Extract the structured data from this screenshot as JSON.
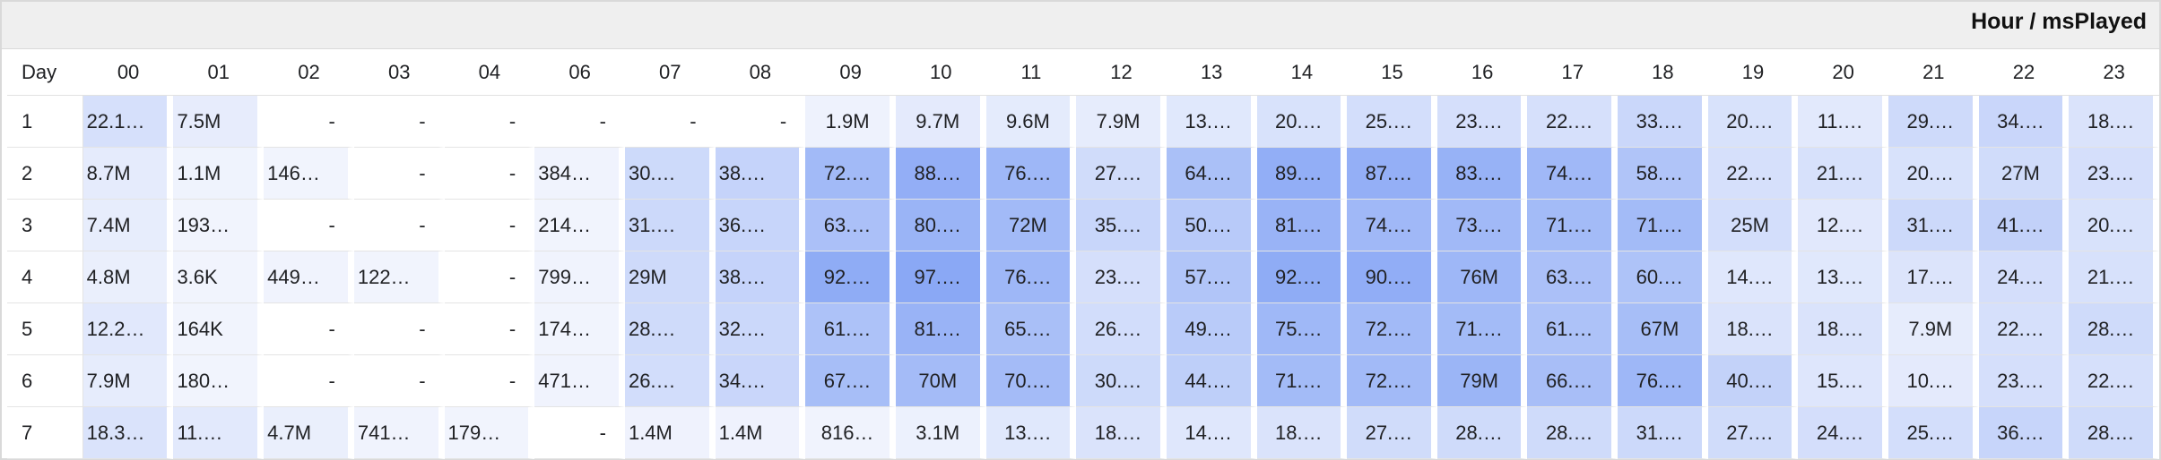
{
  "panel": {
    "title": "Hour / msPlayed"
  },
  "colors": {
    "cell_low": "#f1f4fd",
    "cell_high": "#8aa8f5",
    "empty": "#ffffff"
  },
  "chart_data": {
    "type": "heatmap",
    "row_header": "Day",
    "columns": [
      "00",
      "01",
      "02",
      "03",
      "04",
      "06",
      "07",
      "08",
      "09",
      "10",
      "11",
      "12",
      "13",
      "14",
      "15",
      "16",
      "17",
      "18",
      "19",
      "20",
      "21",
      "22",
      "23"
    ],
    "rows": [
      {
        "day": "1",
        "labels": [
          "22.1…",
          "7.5M",
          "-",
          "-",
          "-",
          "-",
          "-",
          "-",
          "1.9M",
          "9.7M",
          "9.6M",
          "7.9M",
          "13.…",
          "20.…",
          "25.…",
          "23.…",
          "22.…",
          "33.…",
          "20.…",
          "11.…",
          "29.…",
          "34.…",
          "18.…"
        ],
        "values": [
          22100000,
          7500000,
          0,
          0,
          0,
          0,
          0,
          0,
          1900000,
          9700000,
          9600000,
          7900000,
          13000000,
          20000000,
          25000000,
          23000000,
          22000000,
          33000000,
          20000000,
          11000000,
          29000000,
          34000000,
          18000000
        ]
      },
      {
        "day": "2",
        "labels": [
          "8.7M",
          "1.1M",
          "146…",
          "-",
          "-",
          "384…",
          "30.…",
          "38.…",
          "72.…",
          "88.…",
          "76.…",
          "27.…",
          "64.…",
          "89.…",
          "87.…",
          "83.…",
          "74.…",
          "58.…",
          "22.…",
          "21.…",
          "20.…",
          "27M",
          "23.…"
        ],
        "values": [
          8700000,
          1100000,
          146000,
          0,
          0,
          384000,
          30000000,
          38000000,
          72000000,
          88000000,
          76000000,
          27000000,
          64000000,
          89000000,
          87000000,
          83000000,
          74000000,
          58000000,
          22000000,
          21000000,
          20000000,
          27000000,
          23000000
        ]
      },
      {
        "day": "3",
        "labels": [
          "7.4M",
          "193…",
          "-",
          "-",
          "-",
          "214…",
          "31.…",
          "36.…",
          "63.…",
          "80.…",
          "72M",
          "35.…",
          "50.…",
          "81.…",
          "74.…",
          "73.…",
          "71.…",
          "71.…",
          "25M",
          "12.…",
          "31.…",
          "41.…",
          "20.…"
        ],
        "values": [
          7400000,
          193000,
          0,
          0,
          0,
          214000,
          31000000,
          36000000,
          63000000,
          80000000,
          72000000,
          35000000,
          50000000,
          81000000,
          74000000,
          73000000,
          71000000,
          71000000,
          25000000,
          12000000,
          31000000,
          41000000,
          20000000
        ]
      },
      {
        "day": "4",
        "labels": [
          "4.8M",
          "3.6K",
          "449…",
          "122…",
          "-",
          "799…",
          "29M",
          "38.…",
          "92.…",
          "97.…",
          "76.…",
          "23.…",
          "57.…",
          "92.…",
          "90.…",
          "76M",
          "63.…",
          "60.…",
          "14.…",
          "13.…",
          "17.…",
          "24.…",
          "21.…"
        ],
        "values": [
          4800000,
          3600,
          449000,
          122000,
          0,
          799000,
          29000000,
          38000000,
          92000000,
          97000000,
          76000000,
          23000000,
          57000000,
          92000000,
          90000000,
          76000000,
          63000000,
          60000000,
          14000000,
          13000000,
          17000000,
          24000000,
          21000000
        ]
      },
      {
        "day": "5",
        "labels": [
          "12.2…",
          "164K",
          "-",
          "-",
          "-",
          "174…",
          "28.…",
          "32.…",
          "61.…",
          "81.…",
          "65.…",
          "26.…",
          "49.…",
          "75.…",
          "72.…",
          "71.…",
          "61.…",
          "67M",
          "18.…",
          "18.…",
          "7.9M",
          "22.…",
          "28.…"
        ],
        "values": [
          12200000,
          164000,
          0,
          0,
          0,
          174000,
          28000000,
          32000000,
          61000000,
          81000000,
          65000000,
          26000000,
          49000000,
          75000000,
          72000000,
          71000000,
          61000000,
          67000000,
          18000000,
          18000000,
          7900000,
          22000000,
          28000000
        ]
      },
      {
        "day": "6",
        "labels": [
          "7.9M",
          "180…",
          "-",
          "-",
          "-",
          "471…",
          "26.…",
          "34.…",
          "67.…",
          "70M",
          "70.…",
          "30.…",
          "44.…",
          "71.…",
          "72.…",
          "79M",
          "66.…",
          "76.…",
          "40.…",
          "15.…",
          "10.…",
          "23.…",
          "22.…"
        ],
        "values": [
          7900000,
          180000,
          0,
          0,
          0,
          471000,
          26000000,
          34000000,
          67000000,
          70000000,
          70000000,
          30000000,
          44000000,
          71000000,
          72000000,
          79000000,
          66000000,
          76000000,
          40000000,
          15000000,
          10000000,
          23000000,
          22000000
        ]
      },
      {
        "day": "7",
        "labels": [
          "18.3…",
          "11.…",
          "4.7M",
          "741…",
          "179…",
          "-",
          "1.4M",
          "1.4M",
          "816…",
          "3.1M",
          "13.…",
          "18.…",
          "14.…",
          "18.…",
          "27.…",
          "28.…",
          "28.…",
          "31.…",
          "27.…",
          "24.…",
          "25.…",
          "36.…",
          "28.…"
        ],
        "values": [
          18300000,
          11000000,
          4700000,
          741000,
          179000,
          0,
          1400000,
          1400000,
          816000,
          3100000,
          13000000,
          18000000,
          14000000,
          18000000,
          27000000,
          28000000,
          28000000,
          31000000,
          27000000,
          24000000,
          25000000,
          36000000,
          28000000
        ]
      }
    ],
    "max_value": 97000000
  }
}
